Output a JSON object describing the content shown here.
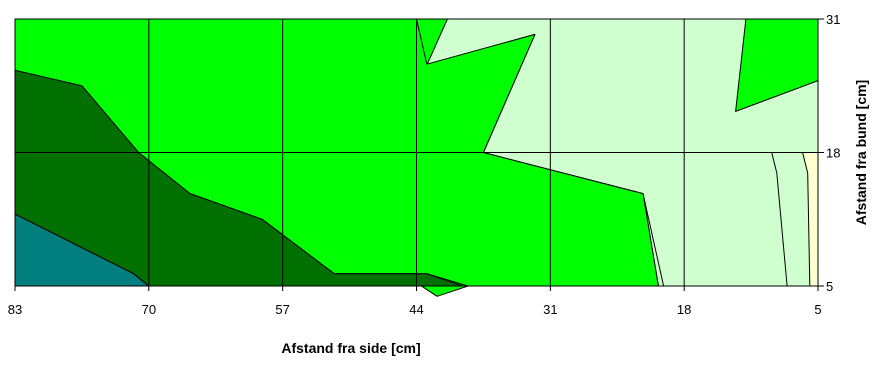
{
  "chart_data": {
    "type": "contour",
    "title": "",
    "xlabel": "Afstand fra side [cm]",
    "ylabel": "Afstand fra bund [cm]",
    "x_ticks": [
      83,
      70,
      57,
      44,
      31,
      18,
      5
    ],
    "y_ticks": [
      5,
      18,
      31
    ],
    "xlim": [
      83,
      5
    ],
    "ylim": [
      5,
      31
    ],
    "grid": true,
    "levels": [
      {
        "color": "#cfffcf"
      },
      {
        "color": "#00ff00"
      },
      {
        "color": "#007000"
      },
      {
        "color": "#007f7f"
      },
      {
        "color": "#ffffd0"
      }
    ],
    "regions": [
      {
        "level": 0,
        "points": [
          [
            44,
            31
          ],
          [
            5,
            31
          ],
          [
            5,
            18
          ],
          [
            9.5,
            18
          ],
          [
            9,
            16
          ],
          [
            8,
            5
          ],
          [
            5,
            5
          ],
          [
            5,
            5
          ],
          [
            20,
            5
          ],
          [
            22,
            14
          ],
          [
            35,
            17
          ],
          [
            39,
            18
          ],
          [
            46,
            31
          ]
        ]
      },
      {
        "level": 1,
        "points": [
          [
            47,
            31
          ],
          [
            44,
            26.5
          ],
          [
            43,
            31
          ]
        ]
      },
      {
        "level": 1,
        "points": [
          [
            83,
            31
          ],
          [
            44,
            31
          ],
          [
            41,
            31
          ],
          [
            43,
            26.5
          ],
          [
            32.5,
            29.5
          ],
          [
            37.5,
            18
          ],
          [
            22,
            14
          ],
          [
            20.5,
            5
          ],
          [
            39,
            5
          ],
          [
            42,
            4
          ]
        ]
      },
      {
        "level": 1,
        "points": [
          [
            83,
            31
          ],
          [
            83,
            26
          ],
          [
            76.5,
            24.5
          ],
          [
            71,
            18
          ],
          [
            66,
            14
          ],
          [
            59,
            11.5
          ],
          [
            52,
            6.2
          ],
          [
            43,
            6.2
          ],
          [
            39,
            5
          ],
          [
            20.5,
            5
          ],
          [
            22,
            14
          ],
          [
            37.5,
            18
          ],
          [
            32.5,
            29.5
          ],
          [
            43,
            26.6
          ],
          [
            44,
            31
          ]
        ]
      },
      {
        "level": 1,
        "points": [
          [
            12,
            31
          ],
          [
            5,
            31
          ],
          [
            5,
            25
          ],
          [
            13,
            22
          ]
        ]
      },
      {
        "level": 2,
        "points": [
          [
            83,
            26
          ],
          [
            76.5,
            24.5
          ],
          [
            71,
            18
          ],
          [
            66,
            14
          ],
          [
            59,
            11.5
          ],
          [
            52,
            6.2
          ],
          [
            43,
            6.2
          ],
          [
            39.5,
            5
          ],
          [
            70,
            5
          ],
          [
            71.5,
            6.2
          ],
          [
            83,
            12
          ]
        ]
      },
      {
        "level": 3,
        "points": [
          [
            83,
            12
          ],
          [
            71.5,
            6.2
          ],
          [
            70,
            5
          ],
          [
            83,
            5
          ]
        ]
      },
      {
        "level": 4,
        "points": [
          [
            5,
            18
          ],
          [
            6.5,
            18
          ],
          [
            6,
            16
          ],
          [
            5.8,
            5
          ],
          [
            5,
            5
          ]
        ]
      }
    ]
  }
}
